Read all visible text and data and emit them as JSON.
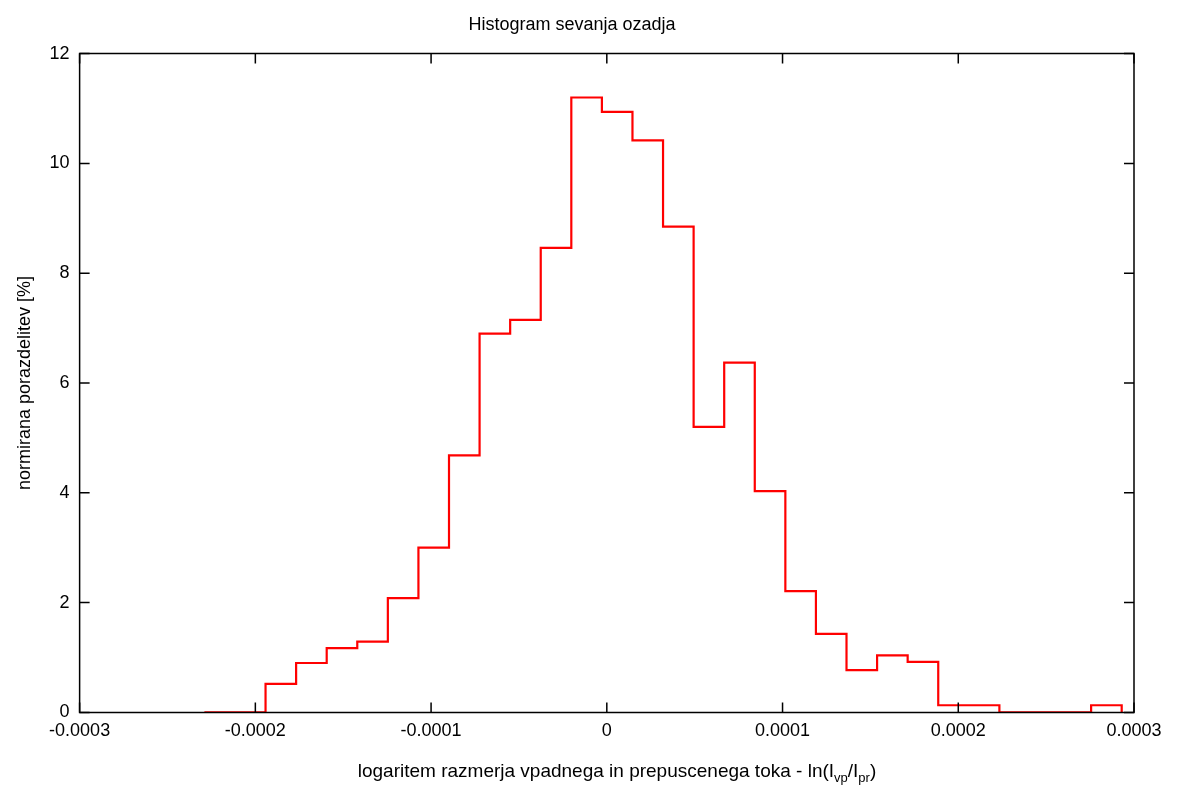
{
  "chart_data": {
    "type": "histogram",
    "title": "Histogram sevanja ozadja",
    "xlabel": "logaritem razmerja vpadnega in prepuscenega toka - ln(I$_{vp}$/I$_{pr}$)",
    "ylabel": "normirana porazdelitev [%]",
    "bins": [
      -0.000229,
      -0.0002116,
      -0.0001942,
      -0.0001768,
      -0.0001594,
      -0.000142,
      -0.0001246,
      -0.0001072,
      -8.98e-05,
      -7.24e-05,
      -5.5e-05,
      -3.76e-05,
      -2.02e-05,
      -2.8e-06,
      1.46e-05,
      3.2e-05,
      4.94e-05,
      6.68e-05,
      8.42e-05,
      0.0001016,
      0.000119,
      0.0001364,
      0.0001538,
      0.0001712,
      0.0001886,
      0.000206,
      0.0002234,
      0.0002408,
      0.0002582,
      0.0002756,
      0.000293
    ],
    "values": [
      0,
      0,
      0.52,
      0.9,
      1.17,
      1.29,
      2.08,
      3.0,
      4.68,
      6.9,
      7.15,
      8.46,
      11.2,
      10.94,
      10.42,
      8.85,
      5.2,
      6.37,
      4.03,
      2.21,
      1.43,
      0.77,
      1.04,
      0.92,
      0.13,
      0.13,
      0,
      0,
      0,
      0.13
    ],
    "color": "#ff0000",
    "xlim": [
      -0.0003,
      0.0003
    ],
    "xticks": [
      -0.0003,
      -0.0002,
      -0.0001,
      0,
      0.0001,
      0.0002,
      0.0003
    ],
    "ylim": [
      0,
      12
    ],
    "yticks": [
      0,
      2,
      4,
      6,
      8,
      10,
      12
    ],
    "grid": false,
    "legend": false
  }
}
